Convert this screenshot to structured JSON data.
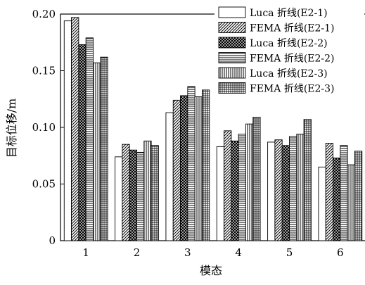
{
  "chart_data": {
    "type": "bar",
    "categories": [
      "1",
      "2",
      "3",
      "4",
      "5",
      "6"
    ],
    "series": [
      {
        "name": "Luca 折线(E2-1)",
        "pattern": "plain",
        "values": [
          0.194,
          0.074,
          0.113,
          0.083,
          0.087,
          0.065
        ]
      },
      {
        "name": "FEMA 折线(E2-1)",
        "pattern": "diag",
        "values": [
          0.197,
          0.085,
          0.124,
          0.097,
          0.089,
          0.086
        ]
      },
      {
        "name": "Luca 折线(E2-2)",
        "pattern": "crosshatch",
        "values": [
          0.173,
          0.08,
          0.128,
          0.088,
          0.084,
          0.073
        ]
      },
      {
        "name": "FEMA 折线(E2-2)",
        "pattern": "hlines",
        "values": [
          0.179,
          0.078,
          0.136,
          0.094,
          0.092,
          0.084
        ]
      },
      {
        "name": "Luca 折线(E2-3)",
        "pattern": "vlines",
        "values": [
          0.157,
          0.088,
          0.127,
          0.103,
          0.094,
          0.067
        ]
      },
      {
        "name": "FEMA 折线(E2-3)",
        "pattern": "grid",
        "values": [
          0.162,
          0.084,
          0.133,
          0.109,
          0.107,
          0.079
        ]
      }
    ],
    "xlabel": "模态",
    "ylabel": "目标位移/m",
    "ylim": [
      0,
      0.2
    ],
    "yticks": [
      "0",
      "0.05",
      "0.10",
      "0.15",
      "0.20"
    ],
    "yticks_values": [
      0,
      0.05,
      0.1,
      0.15,
      0.2
    ],
    "legend_position": "top-right",
    "grid": false
  }
}
